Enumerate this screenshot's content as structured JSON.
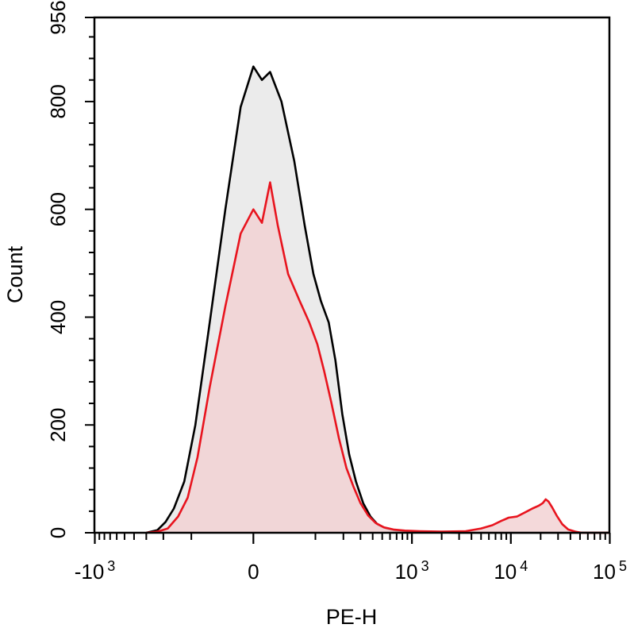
{
  "chart_data": {
    "type": "area",
    "title": "",
    "xlabel": "PE-H",
    "ylabel": "Count",
    "x_scale": "biexponential",
    "ylim": [
      0,
      956
    ],
    "y_ticks": [
      {
        "value": 0,
        "label": "0"
      },
      {
        "value": 200,
        "label": "200"
      },
      {
        "value": 400,
        "label": "400"
      },
      {
        "value": 600,
        "label": "600"
      },
      {
        "value": 800,
        "label": "800"
      },
      {
        "value": 956,
        "label": "956"
      }
    ],
    "x_ticks": [
      {
        "value": -1000,
        "base": "-10",
        "exp": "3"
      },
      {
        "value": 0,
        "base": "0",
        "exp": ""
      },
      {
        "value": 1000,
        "base": "10",
        "exp": "3"
      },
      {
        "value": 10000,
        "base": "10",
        "exp": "4"
      },
      {
        "value": 100000,
        "base": "10",
        "exp": "5"
      }
    ],
    "series": [
      {
        "color": "#000000",
        "fill": "#e8e8e8",
        "points": [
          [
            -300,
            0
          ],
          [
            -230,
            5
          ],
          [
            -190,
            20
          ],
          [
            -155,
            45
          ],
          [
            -120,
            95
          ],
          [
            -90,
            200
          ],
          [
            -60,
            390
          ],
          [
            -35,
            600
          ],
          [
            -15,
            790
          ],
          [
            0,
            865
          ],
          [
            10,
            840
          ],
          [
            20,
            855
          ],
          [
            35,
            800
          ],
          [
            55,
            690
          ],
          [
            75,
            570
          ],
          [
            95,
            480
          ],
          [
            115,
            430
          ],
          [
            140,
            390
          ],
          [
            165,
            320
          ],
          [
            195,
            220
          ],
          [
            230,
            145
          ],
          [
            270,
            95
          ],
          [
            320,
            55
          ],
          [
            380,
            30
          ],
          [
            450,
            15
          ],
          [
            550,
            8
          ],
          [
            700,
            4
          ],
          [
            900,
            2
          ],
          [
            1500,
            1
          ],
          [
            3000,
            0
          ],
          [
            100000,
            0
          ]
        ]
      },
      {
        "color": "#e8141e",
        "fill": "#f2d2d4",
        "points": [
          [
            -300,
            0
          ],
          [
            -230,
            2
          ],
          [
            -180,
            8
          ],
          [
            -140,
            30
          ],
          [
            -110,
            65
          ],
          [
            -85,
            140
          ],
          [
            -60,
            270
          ],
          [
            -35,
            420
          ],
          [
            -15,
            555
          ],
          [
            0,
            600
          ],
          [
            10,
            575
          ],
          [
            20,
            650
          ],
          [
            30,
            570
          ],
          [
            45,
            480
          ],
          [
            65,
            430
          ],
          [
            85,
            390
          ],
          [
            105,
            350
          ],
          [
            125,
            300
          ],
          [
            150,
            240
          ],
          [
            180,
            175
          ],
          [
            215,
            120
          ],
          [
            255,
            85
          ],
          [
            300,
            55
          ],
          [
            360,
            32
          ],
          [
            430,
            18
          ],
          [
            520,
            10
          ],
          [
            650,
            6
          ],
          [
            850,
            4
          ],
          [
            1200,
            3
          ],
          [
            2000,
            2
          ],
          [
            3500,
            3
          ],
          [
            5000,
            8
          ],
          [
            6500,
            14
          ],
          [
            8000,
            22
          ],
          [
            9500,
            28
          ],
          [
            11500,
            30
          ],
          [
            14000,
            38
          ],
          [
            16500,
            45
          ],
          [
            19000,
            50
          ],
          [
            21000,
            55
          ],
          [
            22500,
            62
          ],
          [
            24000,
            58
          ],
          [
            26000,
            48
          ],
          [
            29000,
            32
          ],
          [
            33000,
            16
          ],
          [
            38000,
            6
          ],
          [
            45000,
            2
          ],
          [
            52000,
            0
          ],
          [
            100000,
            0
          ]
        ]
      }
    ]
  }
}
